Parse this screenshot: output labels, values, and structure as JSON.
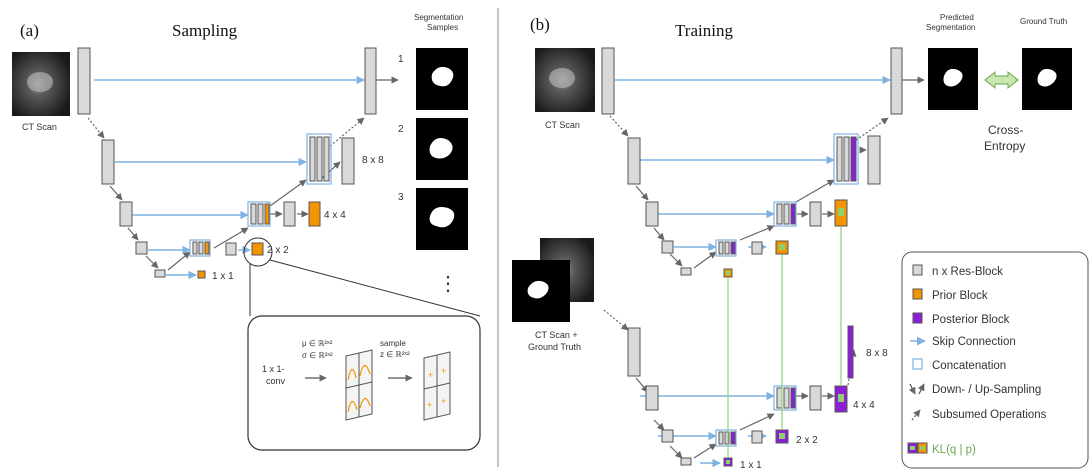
{
  "colors": {
    "res_block": "#d9d9d9",
    "res_border": "#555555",
    "prior": "#f29500",
    "posterior": "#8b1fd6",
    "skip": "#7fb2e3",
    "kl_line": "#8fd06e",
    "arrow": "#666666"
  },
  "panel_a": {
    "tag": "(a)",
    "title": "Sampling",
    "input_label": "CT Scan",
    "samples_title_line1": "Segmentation",
    "samples_title_line2": "Samples",
    "sample_numbers": [
      "1",
      "2",
      "3"
    ],
    "ellipsis": "⋮",
    "scale_labels": [
      "8 x 8",
      "4 x 4",
      "2 x 2",
      "1 x 1"
    ],
    "inset": {
      "conv_line1": "1 x 1-",
      "conv_line2": "conv",
      "mu": "μ ∈ ℝ²ˣ²",
      "sigma": "σ ∈ ℝ²ˣ²",
      "sample_line1": "sample",
      "sample_line2": "z ∈ ℝ²ˣ²"
    }
  },
  "panel_b": {
    "tag": "(b)",
    "title": "Training",
    "input_label": "CT Scan",
    "input2_line1": "CT Scan +",
    "input2_line2": "Ground Truth",
    "pred_line1": "Predicted",
    "pred_line2": "Segmentation",
    "gt_label": "Ground Truth",
    "loss_line1": "Cross-",
    "loss_line2": "Entropy",
    "scale_labels": [
      "8 x 8",
      "4 x 4",
      "2 x 2",
      "1 x 1"
    ]
  },
  "legend": {
    "items": [
      {
        "icon": "res-block-icon",
        "label": "n x Res-Block"
      },
      {
        "icon": "prior-block-icon",
        "label": "Prior Block"
      },
      {
        "icon": "posterior-block-icon",
        "label": "Posterior Block"
      },
      {
        "icon": "skip-arrow-icon",
        "label": "Skip Connection"
      },
      {
        "icon": "concatenation-icon",
        "label": "Concatenation"
      },
      {
        "icon": "down-up-arrow-icon",
        "label": "Down- / Up-Sampling"
      },
      {
        "icon": "dotted-arrow-icon",
        "label": "Subsumed Operations"
      },
      {
        "icon": "kl-icon",
        "label": "KL(q | p)"
      }
    ]
  }
}
